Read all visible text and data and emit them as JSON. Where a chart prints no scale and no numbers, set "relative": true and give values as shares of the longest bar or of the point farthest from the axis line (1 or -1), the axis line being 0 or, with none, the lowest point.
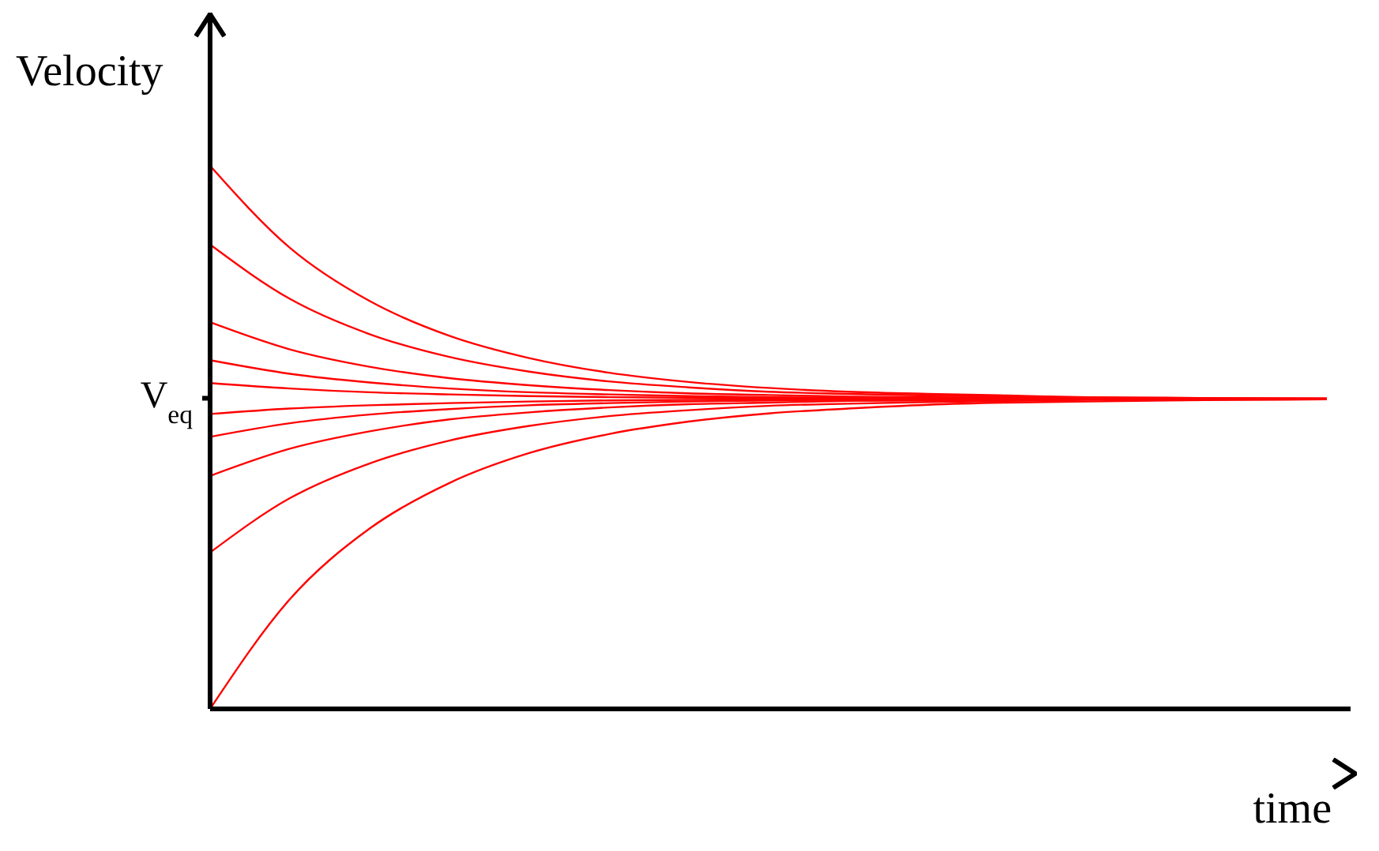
{
  "chart_data": {
    "type": "line",
    "relative": true,
    "xlabel": "time",
    "ylabel": "Velocity",
    "annotations": [
      "V$_{eq}$"
    ],
    "categories": [
      null,
      null,
      null,
      null,
      null,
      null,
      null,
      null,
      null,
      null,
      null,
      null,
      null,
      null,
      null
    ],
    "series": [
      {
        "color": "#ff0000",
        "values": [
          1.0,
          0.849,
          0.751,
          0.687,
          0.646,
          0.619,
          0.602,
          0.591,
          0.584,
          0.58,
          0.577,
          0.574,
          0.573,
          0.572,
          0.572
        ]
      },
      {
        "color": "#ff0000",
        "values": [
          0.855,
          0.755,
          0.69,
          0.648,
          0.621,
          0.603,
          0.592,
          0.584,
          0.58,
          0.577,
          0.575,
          0.573,
          0.572,
          0.572,
          0.571
        ]
      },
      {
        "color": "#ff0000",
        "values": [
          0.712,
          0.662,
          0.63,
          0.609,
          0.596,
          0.587,
          0.581,
          0.578,
          0.575,
          0.574,
          0.573,
          0.572,
          0.571,
          0.571,
          0.571
        ]
      },
      {
        "color": "#ff0000",
        "values": [
          0.642,
          0.617,
          0.601,
          0.59,
          0.583,
          0.579,
          0.576,
          0.574,
          0.573,
          0.572,
          0.572,
          0.571,
          0.571,
          0.571,
          0.571
        ]
      },
      {
        "color": "#ff0000",
        "values": [
          0.6,
          0.59,
          0.583,
          0.579,
          0.576,
          0.574,
          0.573,
          0.572,
          0.572,
          0.571,
          0.571,
          0.571,
          0.571,
          0.571,
          0.571
        ]
      },
      {
        "color": "#ff0000",
        "values": [
          0.543,
          0.553,
          0.559,
          0.563,
          0.566,
          0.568,
          0.569,
          0.57,
          0.57,
          0.571,
          0.571,
          0.571,
          0.571,
          0.571,
          0.571
        ]
      },
      {
        "color": "#ff0000",
        "values": [
          0.501,
          0.526,
          0.542,
          0.552,
          0.559,
          0.563,
          0.566,
          0.568,
          0.569,
          0.57,
          0.57,
          0.571,
          0.571,
          0.571,
          0.571
        ]
      },
      {
        "color": "#ff0000",
        "values": [
          0.429,
          0.479,
          0.511,
          0.533,
          0.546,
          0.555,
          0.561,
          0.564,
          0.567,
          0.568,
          0.569,
          0.57,
          0.57,
          0.571,
          0.571
        ]
      },
      {
        "color": "#ff0000",
        "values": [
          0.288,
          0.388,
          0.452,
          0.494,
          0.521,
          0.539,
          0.55,
          0.558,
          0.562,
          0.565,
          0.567,
          0.569,
          0.57,
          0.57,
          0.571
        ]
      },
      {
        "color": "#ff0000",
        "values": [
          0.0,
          0.202,
          0.332,
          0.416,
          0.471,
          0.506,
          0.529,
          0.544,
          0.553,
          0.56,
          0.564,
          0.566,
          0.568,
          0.569,
          0.57
        ]
      }
    ]
  }
}
